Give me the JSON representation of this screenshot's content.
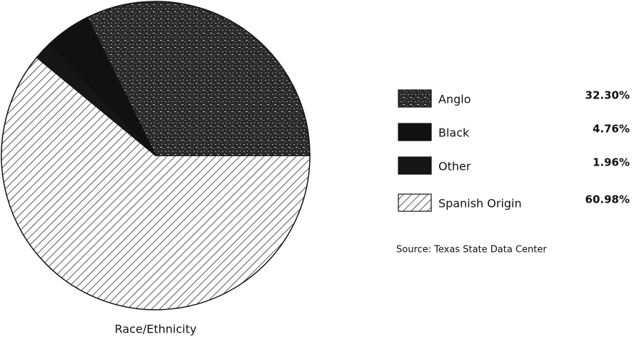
{
  "chart_data": {
    "type": "pie",
    "title": "Race/Ethnicity",
    "categories": [
      "Anglo",
      "Black",
      "Other",
      "Spanish Origin"
    ],
    "values": [
      32.3,
      4.76,
      1.96,
      60.98
    ],
    "value_labels": [
      "32.30%",
      "4.76%",
      "1.96%",
      "60.98%"
    ],
    "colors": [
      "#3a3a3a",
      "#111111",
      "#161616",
      "#ffffff"
    ],
    "patterns": [
      "speckle",
      "solid",
      "solid",
      "hatch"
    ],
    "source": "Source: Texas State Data Center"
  }
}
